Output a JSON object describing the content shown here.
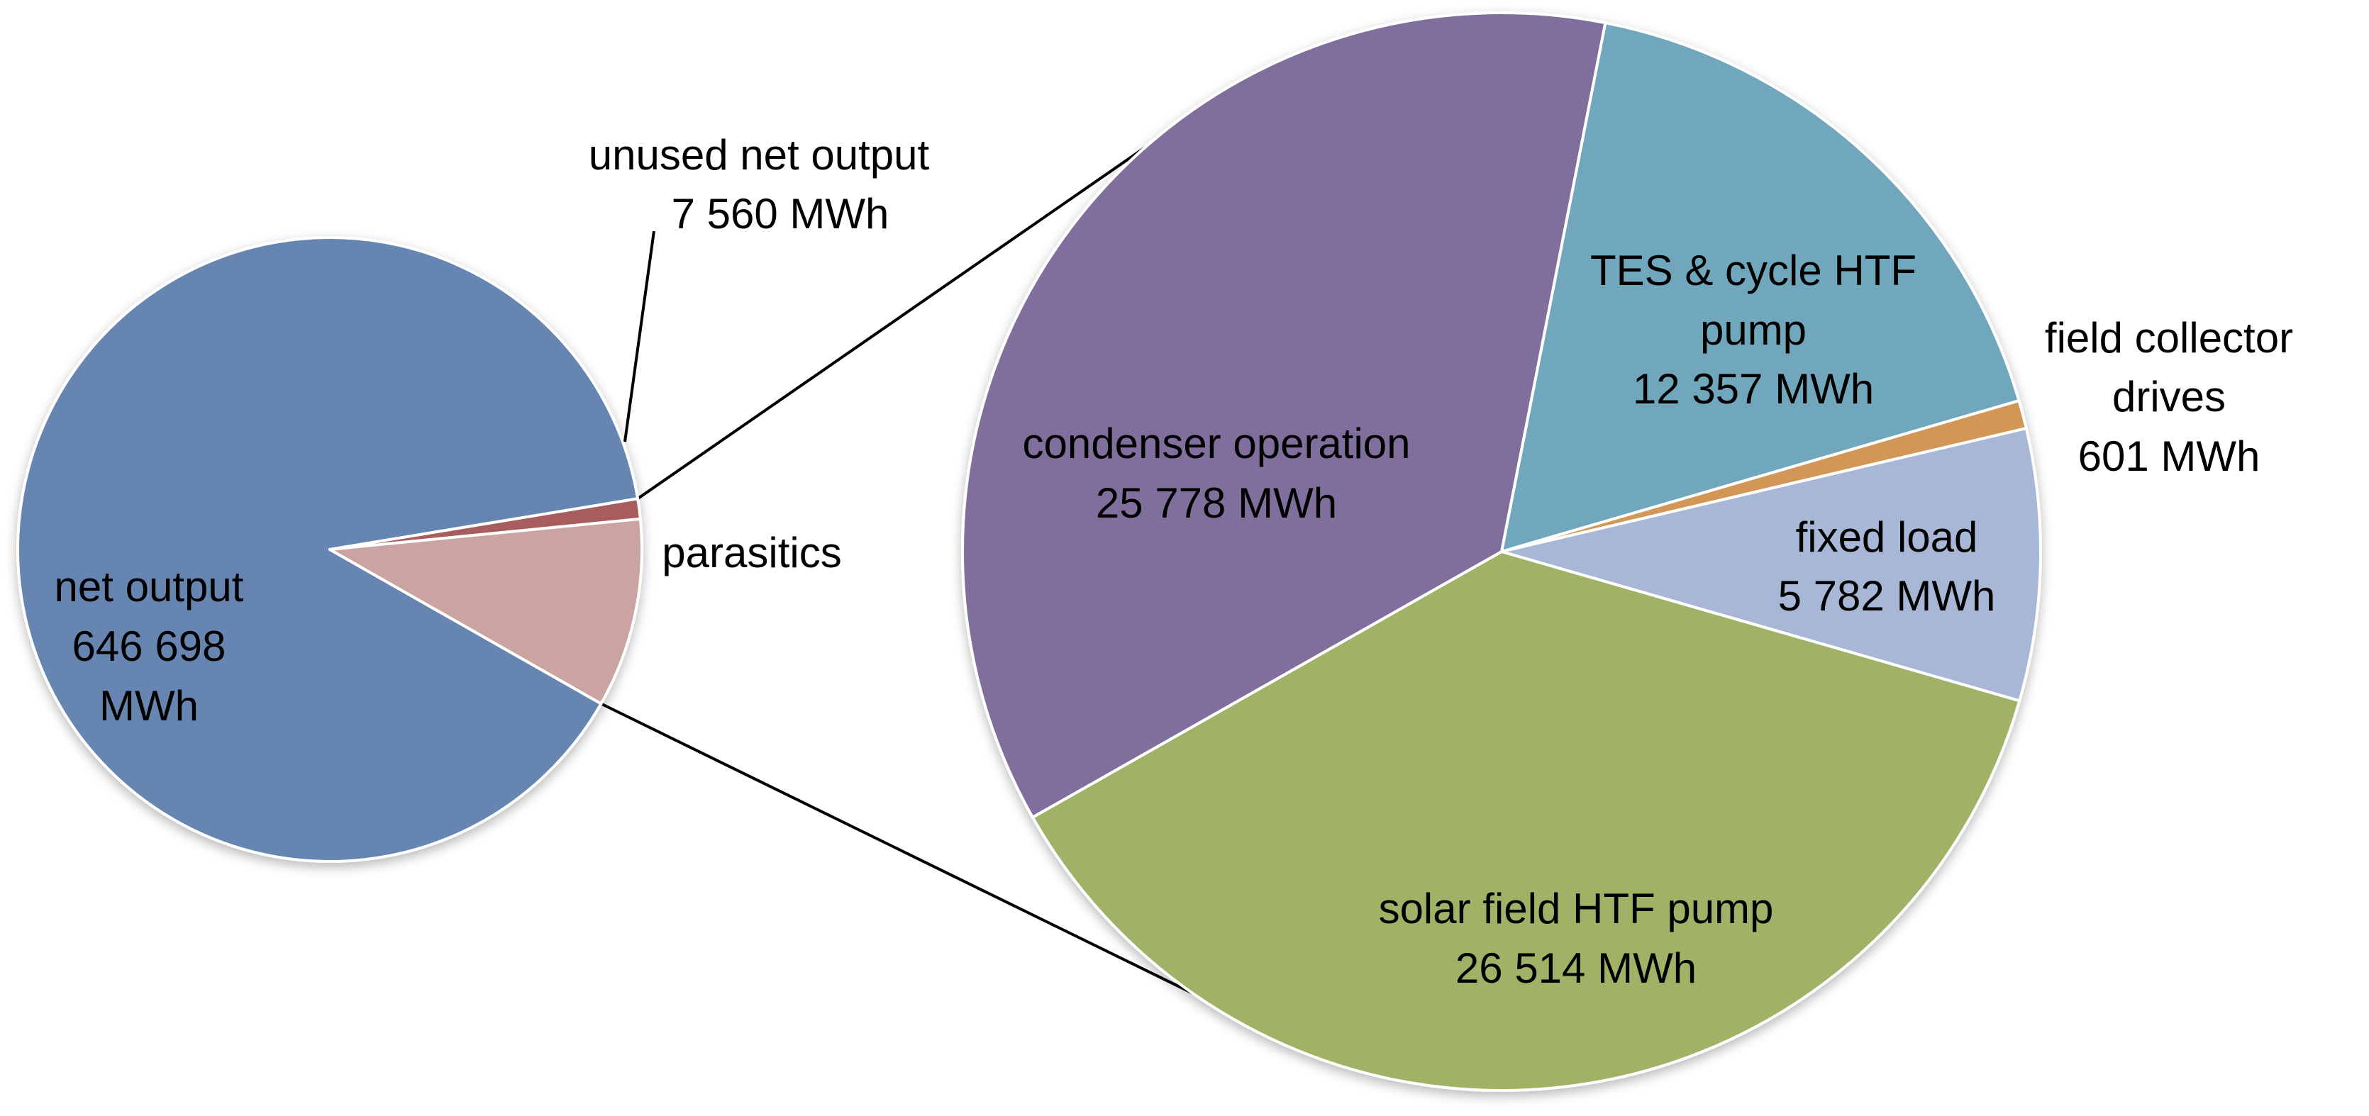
{
  "chart_data": {
    "type": "pie",
    "subtype": "pie-of-pie",
    "unit": "MWh",
    "main_pie": {
      "slices": [
        {
          "label": "net output",
          "value_text": "646 698",
          "unit_text": "MWh",
          "value": 646698,
          "color": "#6685b1"
        },
        {
          "label": "unused net output",
          "value_text": "7 560 MWh",
          "value": 7560,
          "color": "#a65d5c"
        },
        {
          "label": "parasitics",
          "value_text": "",
          "value": 71032,
          "color": "#cba4a2"
        }
      ]
    },
    "breakdown_pie": {
      "of": "parasitics",
      "slices": [
        {
          "label": "TES & cycle HTF pump",
          "value_text": "12 357 MWh",
          "value": 12357,
          "color": "#70a7bc"
        },
        {
          "label": "field collector drives",
          "value_text": "601 MWh",
          "value": 601,
          "color": "#d39754"
        },
        {
          "label": "fixed load",
          "value_text": "5 782 MWh",
          "value": 5782,
          "color": "#a8b7d6"
        },
        {
          "label": "solar field HTF pump",
          "value_text": "26 514 MWh",
          "value": 26514,
          "color": "#a0b266"
        },
        {
          "label": "condenser operation",
          "value_text": "25 778 MWh",
          "value": 25778,
          "color": "#806e9c"
        }
      ]
    }
  }
}
